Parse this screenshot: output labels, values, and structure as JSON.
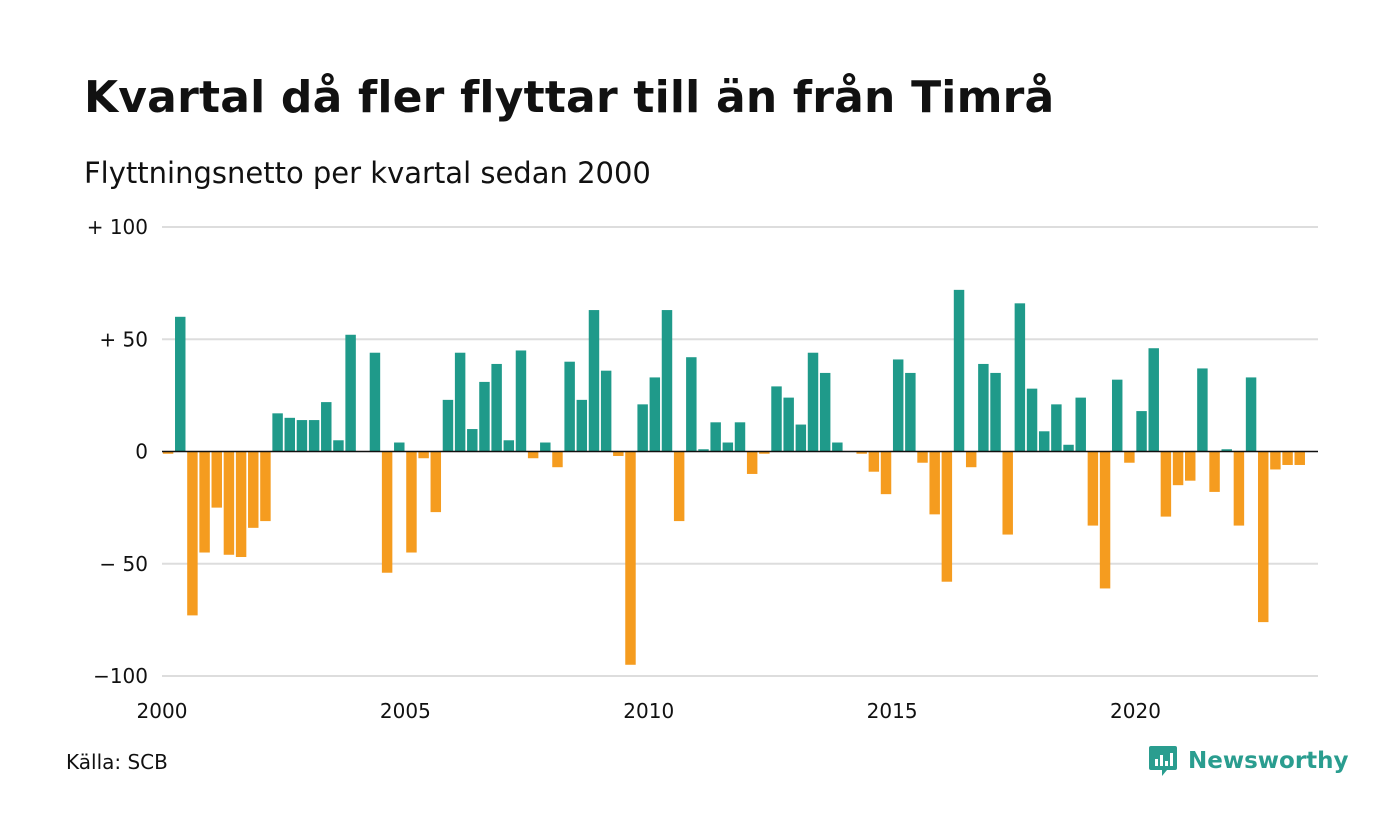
{
  "title": "Kvartal då fler flyttar till än från Timrå",
  "subtitle": "Flyttningsnetto per kvartal sedan 2000",
  "source": "Källa: SCB",
  "brand": {
    "name": "Newsworthy",
    "icon": "newsworthy-logo-icon"
  },
  "colors": {
    "positive": "#1f9a8a",
    "negative": "#f59c1f",
    "grid": "#dddddd",
    "zero": "#111111"
  },
  "chart_data": {
    "type": "bar",
    "title": "Kvartal då fler flyttar till än från Timrå",
    "subtitle": "Flyttningsnetto per kvartal sedan 2000",
    "xlabel": "",
    "ylabel": "",
    "ylim": [
      -100,
      100
    ],
    "xlim": [
      2000,
      2023.75
    ],
    "grid": true,
    "legend": "none",
    "y_ticks": [
      {
        "value": 100,
        "label": "+ 100"
      },
      {
        "value": 50,
        "label": "+  50"
      },
      {
        "value": 0,
        "label": "0"
      },
      {
        "value": -50,
        "label": "− 50"
      },
      {
        "value": -100,
        "label": "−100"
      }
    ],
    "x_ticks": [
      {
        "value": 2000,
        "label": "2000"
      },
      {
        "value": 2005,
        "label": "2005"
      },
      {
        "value": 2010,
        "label": "2010"
      },
      {
        "value": 2015,
        "label": "2015"
      },
      {
        "value": 2020,
        "label": "2020"
      }
    ],
    "start_year": 2000,
    "quarters_per_year": 4,
    "values": [
      -1,
      60,
      -73,
      -45,
      -25,
      -46,
      -47,
      -34,
      -31,
      17,
      15,
      14,
      14,
      22,
      5,
      52,
      0,
      44,
      -54,
      4,
      -45,
      -3,
      -27,
      23,
      44,
      10,
      31,
      39,
      5,
      45,
      -3,
      4,
      -7,
      40,
      23,
      63,
      36,
      -2,
      -95,
      21,
      33,
      63,
      -31,
      42,
      1,
      13,
      4,
      13,
      -10,
      -1,
      29,
      24,
      12,
      44,
      35,
      4,
      0,
      -1,
      -9,
      -19,
      41,
      35,
      -5,
      -28,
      -58,
      72,
      -7,
      39,
      35,
      -37,
      66,
      28,
      9,
      21,
      3,
      24,
      -33,
      -61,
      32,
      -5,
      18,
      46,
      -29,
      -15,
      -13,
      37,
      -18,
      1,
      -33,
      33,
      -76,
      -8,
      -6,
      -6
    ]
  }
}
